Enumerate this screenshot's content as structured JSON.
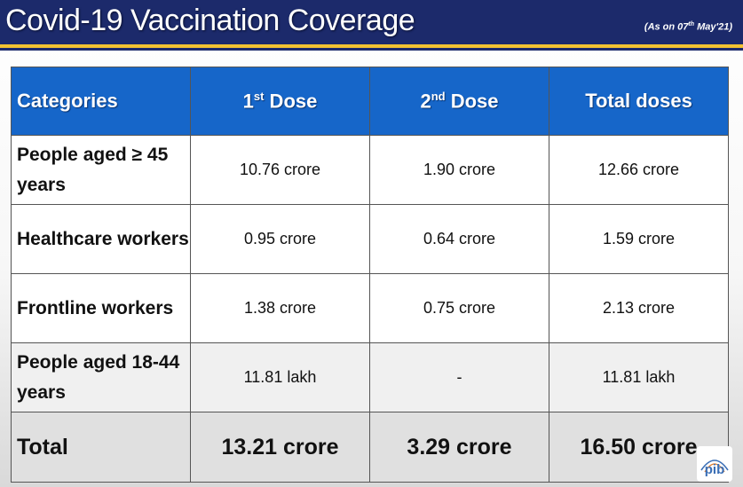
{
  "header": {
    "title": "Covid-19 Vaccination Coverage",
    "date_prefix": "(As on 07",
    "date_sup": "th",
    "date_suffix": " May'21)"
  },
  "table": {
    "headers": {
      "categories": "Categories",
      "dose1_num": "1",
      "dose1_sup": "st",
      "dose1_label": " Dose",
      "dose2_num": "2",
      "dose2_sup": "nd",
      "dose2_label": " Dose",
      "total": "Total doses"
    },
    "rows": [
      {
        "category": "People aged ≥ 45 years",
        "dose1": "10.76 crore",
        "dose2": "1.90 crore",
        "total": "12.66 crore"
      },
      {
        "category": "Healthcare workers",
        "dose1": "0.95 crore",
        "dose2": "0.64 crore",
        "total": "1.59 crore"
      },
      {
        "category": "Frontline workers",
        "dose1": "1.38 crore",
        "dose2": "0.75 crore",
        "total": "2.13 crore"
      },
      {
        "category": "People aged 18-44 years",
        "dose1": "11.81 lakh",
        "dose2": "-",
        "total": "11.81 lakh"
      }
    ],
    "total_row": {
      "category": "Total",
      "dose1": "13.21 crore",
      "dose2": "3.29 crore",
      "total": "16.50 crore"
    }
  },
  "logo": {
    "text": "pib"
  },
  "colors": {
    "header_bg": "#1c2a6b",
    "header_stripe": "#f2c232",
    "table_header_bg": "#1666c9"
  }
}
